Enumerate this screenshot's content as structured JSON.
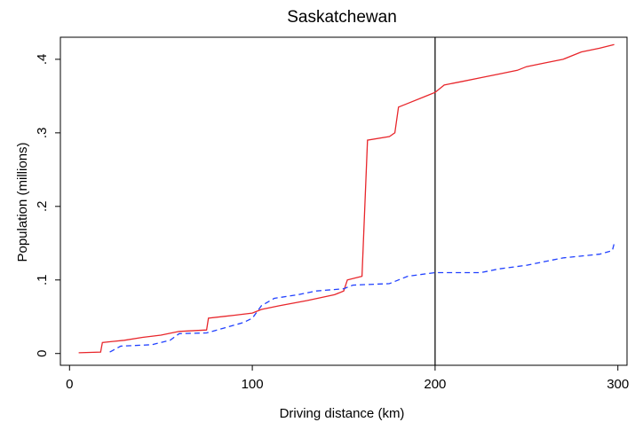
{
  "chart_data": {
    "type": "line",
    "title": "Saskatchewan",
    "x_label": "Driving distance (km)",
    "y_label": "Population (millions)",
    "xlim": [
      -5,
      305
    ],
    "ylim": [
      -0.016,
      0.43
    ],
    "xticks": [
      0,
      100,
      200,
      300
    ],
    "yticks": [
      0,
      {
        "value": 0.1,
        "label": ".1"
      },
      {
        "value": 0.2,
        "label": ".2"
      },
      {
        "value": 0.3,
        "label": ".3"
      },
      {
        "value": 0.4,
        "label": ".4"
      }
    ],
    "reference_line_x": 200,
    "series": [
      {
        "color": "#e8262b",
        "dash": false,
        "x": [
          5,
          17,
          18,
          30,
          40,
          50,
          60,
          75,
          76,
          90,
          100,
          105,
          115,
          130,
          145,
          150,
          152,
          160,
          163,
          175,
          178,
          180,
          185,
          195,
          200,
          205,
          215,
          225,
          235,
          245,
          250,
          260,
          270,
          280,
          290,
          298
        ],
        "values": [
          0.001,
          0.002,
          0.015,
          0.018,
          0.022,
          0.025,
          0.03,
          0.032,
          0.048,
          0.052,
          0.055,
          0.06,
          0.065,
          0.072,
          0.08,
          0.085,
          0.1,
          0.105,
          0.29,
          0.295,
          0.3,
          0.335,
          0.34,
          0.35,
          0.355,
          0.365,
          0.37,
          0.375,
          0.38,
          0.385,
          0.39,
          0.395,
          0.4,
          0.41,
          0.415,
          0.42
        ]
      },
      {
        "color": "#2040ff",
        "dash": true,
        "x": [
          22,
          28,
          45,
          55,
          60,
          75,
          85,
          95,
          100,
          105,
          112,
          125,
          135,
          150,
          155,
          175,
          185,
          200,
          225,
          235,
          250,
          260,
          270,
          290,
          297,
          298
        ],
        "values": [
          0.002,
          0.01,
          0.012,
          0.018,
          0.027,
          0.028,
          0.035,
          0.042,
          0.048,
          0.065,
          0.075,
          0.08,
          0.085,
          0.088,
          0.093,
          0.095,
          0.105,
          0.11,
          0.11,
          0.115,
          0.12,
          0.125,
          0.13,
          0.135,
          0.14,
          0.15
        ]
      }
    ]
  }
}
